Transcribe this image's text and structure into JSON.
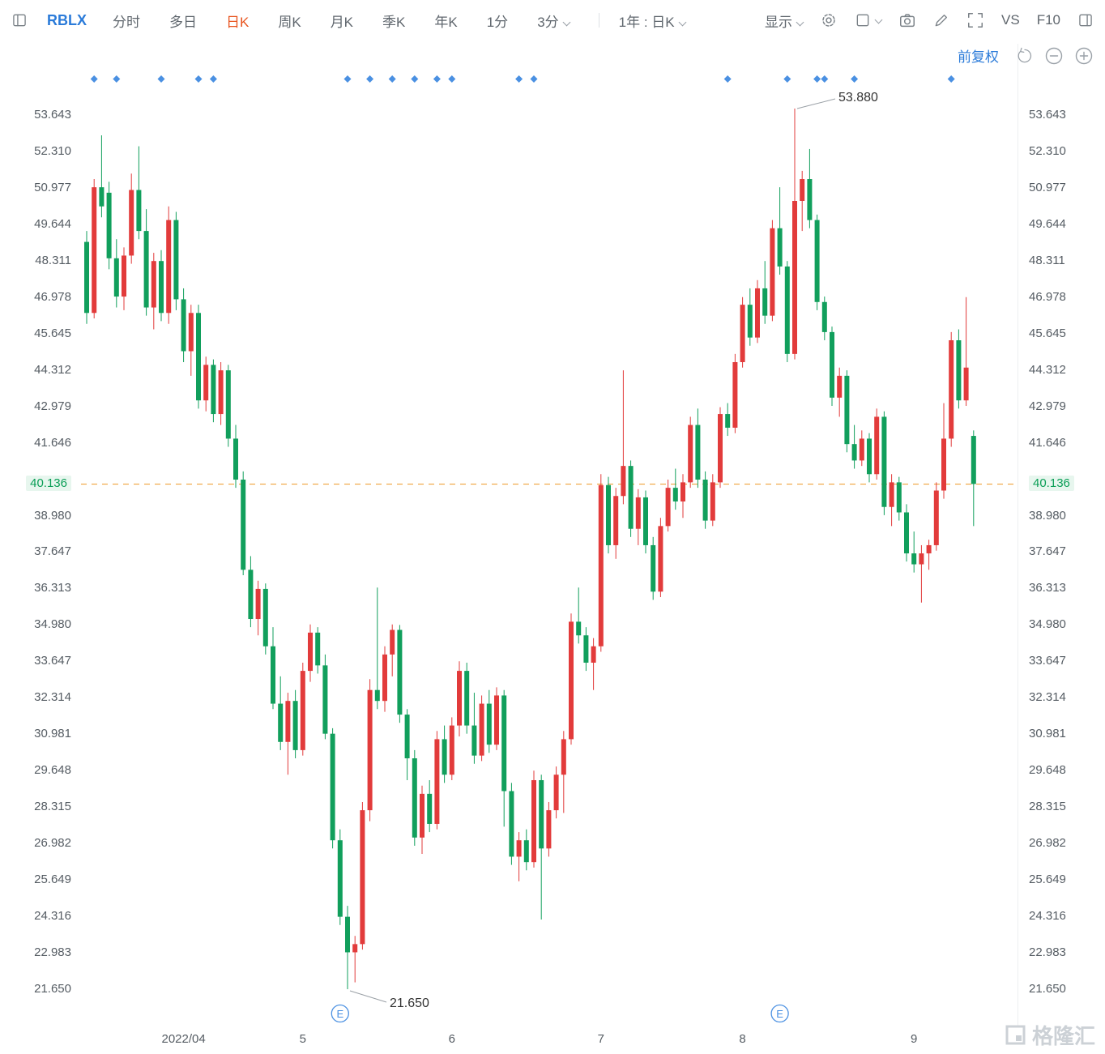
{
  "toolbar": {
    "symbol": "RBLX",
    "tabs": [
      "分时",
      "多日",
      "日K",
      "周K",
      "月K",
      "季K",
      "年K",
      "1分",
      "3分"
    ],
    "active_tab": "日K",
    "range_selector": "1年 : 日K",
    "display_label": "显示",
    "vs_label": "VS",
    "f10_label": "F10",
    "adjustment": "前复权"
  },
  "watermark_text": "格隆汇",
  "colors": {
    "up": "#e23b3b",
    "down": "#119f5c",
    "current_line": "#f0a23c",
    "marker_blue": "#4a90e2",
    "accent_orange": "#e8541e",
    "link_blue": "#2b7bd9",
    "current_price_green": "#0a9e56"
  },
  "chart_data": {
    "type": "candlestick",
    "symbol": "RBLX",
    "range": "1年",
    "timeframe": "日K",
    "adjustment": "前复权",
    "current_price": 40.136,
    "current_price_label": "40.136",
    "high_annotation": {
      "text": "53.880",
      "index": 95
    },
    "low_annotation": {
      "text": "21.650",
      "index": 35
    },
    "y_axis_labels": [
      "53.643",
      "52.310",
      "50.977",
      "49.644",
      "48.311",
      "46.978",
      "45.645",
      "44.312",
      "42.979",
      "41.646",
      "38.980",
      "37.647",
      "36.313",
      "34.980",
      "33.647",
      "32.314",
      "30.981",
      "29.648",
      "28.315",
      "26.982",
      "25.649",
      "24.316",
      "22.983",
      "21.650"
    ],
    "x_axis_labels": [
      {
        "label": "2022/04",
        "index": 13
      },
      {
        "label": "5",
        "index": 29
      },
      {
        "label": "6",
        "index": 49
      },
      {
        "label": "7",
        "index": 69
      },
      {
        "label": "8",
        "index": 88
      },
      {
        "label": "9",
        "index": 111
      }
    ],
    "event_marker_indices": [
      1,
      4,
      10,
      15,
      17,
      35,
      38,
      41,
      44,
      47,
      49,
      58,
      60,
      86,
      94,
      98,
      99,
      103,
      116
    ],
    "earnings_marker_indices": [
      34,
      93
    ],
    "candles": [
      [
        49.0,
        49.4,
        46.0,
        46.4
      ],
      [
        46.4,
        51.3,
        46.2,
        51.0
      ],
      [
        51.0,
        52.9,
        49.9,
        50.3
      ],
      [
        50.8,
        51.2,
        48.0,
        48.4
      ],
      [
        48.4,
        49.1,
        46.6,
        47.0
      ],
      [
        47.0,
        48.8,
        46.5,
        48.5
      ],
      [
        48.5,
        51.5,
        48.2,
        50.9
      ],
      [
        50.9,
        52.5,
        49.1,
        49.4
      ],
      [
        49.4,
        50.2,
        46.3,
        46.6
      ],
      [
        46.6,
        48.6,
        45.8,
        48.3
      ],
      [
        48.3,
        48.7,
        46.1,
        46.4
      ],
      [
        46.4,
        50.3,
        46.0,
        49.8
      ],
      [
        49.8,
        50.1,
        46.5,
        46.9
      ],
      [
        46.9,
        47.3,
        44.6,
        45.0
      ],
      [
        45.0,
        46.7,
        44.1,
        46.4
      ],
      [
        46.4,
        46.7,
        42.9,
        43.2
      ],
      [
        43.2,
        44.8,
        42.8,
        44.5
      ],
      [
        44.5,
        44.7,
        42.4,
        42.7
      ],
      [
        42.7,
        44.6,
        42.3,
        44.3
      ],
      [
        44.3,
        44.5,
        41.5,
        41.8
      ],
      [
        41.8,
        42.3,
        40.0,
        40.3
      ],
      [
        40.3,
        40.6,
        36.8,
        37.0
      ],
      [
        37.0,
        37.5,
        34.9,
        35.2
      ],
      [
        35.2,
        36.6,
        34.6,
        36.3
      ],
      [
        36.3,
        36.5,
        33.9,
        34.2
      ],
      [
        34.2,
        34.9,
        31.9,
        32.1
      ],
      [
        32.1,
        33.1,
        30.4,
        30.7
      ],
      [
        30.7,
        32.5,
        29.5,
        32.2
      ],
      [
        32.2,
        32.6,
        30.1,
        30.4
      ],
      [
        30.4,
        33.6,
        30.2,
        33.3
      ],
      [
        33.3,
        35.0,
        32.9,
        34.7
      ],
      [
        34.7,
        34.9,
        33.2,
        33.5
      ],
      [
        33.5,
        33.9,
        30.8,
        31.0
      ],
      [
        31.0,
        31.2,
        26.8,
        27.1
      ],
      [
        27.1,
        27.5,
        24.0,
        24.3
      ],
      [
        24.3,
        24.7,
        21.65,
        23.0
      ],
      [
        23.0,
        23.6,
        21.9,
        23.3
      ],
      [
        23.3,
        28.5,
        23.1,
        28.2
      ],
      [
        28.2,
        33.0,
        27.8,
        32.6
      ],
      [
        32.6,
        36.35,
        31.9,
        32.2
      ],
      [
        32.2,
        34.2,
        31.8,
        33.9
      ],
      [
        33.9,
        35.0,
        33.1,
        34.8
      ],
      [
        34.8,
        34.98,
        31.4,
        31.7
      ],
      [
        31.7,
        31.9,
        29.3,
        30.1
      ],
      [
        30.1,
        30.4,
        26.9,
        27.2
      ],
      [
        27.2,
        29.1,
        26.6,
        28.8
      ],
      [
        28.8,
        29.3,
        27.4,
        27.7
      ],
      [
        27.7,
        31.1,
        27.5,
        30.8
      ],
      [
        30.8,
        31.3,
        29.2,
        29.5
      ],
      [
        29.5,
        31.6,
        29.3,
        31.3
      ],
      [
        31.3,
        33.65,
        30.9,
        33.3
      ],
      [
        33.3,
        33.6,
        31.0,
        31.3
      ],
      [
        31.3,
        32.5,
        29.9,
        30.2
      ],
      [
        30.2,
        32.4,
        30.0,
        32.1
      ],
      [
        32.1,
        32.6,
        30.3,
        30.6
      ],
      [
        30.6,
        32.7,
        30.4,
        32.4
      ],
      [
        32.4,
        32.6,
        27.6,
        28.9
      ],
      [
        28.9,
        29.2,
        26.2,
        26.5
      ],
      [
        26.5,
        27.4,
        25.6,
        27.1
      ],
      [
        27.1,
        27.5,
        26.0,
        26.3
      ],
      [
        26.3,
        29.65,
        26.1,
        29.3
      ],
      [
        29.3,
        29.5,
        24.2,
        26.8
      ],
      [
        26.8,
        28.5,
        26.5,
        28.2
      ],
      [
        28.2,
        29.8,
        27.9,
        29.5
      ],
      [
        29.5,
        31.1,
        28.1,
        30.8
      ],
      [
        30.8,
        35.4,
        30.6,
        35.1
      ],
      [
        35.1,
        36.35,
        34.3,
        34.6
      ],
      [
        34.6,
        34.9,
        33.3,
        33.6
      ],
      [
        33.6,
        34.5,
        32.6,
        34.2
      ],
      [
        34.2,
        40.5,
        34.0,
        40.1
      ],
      [
        40.1,
        40.4,
        37.6,
        37.9
      ],
      [
        37.9,
        40.0,
        37.4,
        39.7
      ],
      [
        39.7,
        44.3,
        39.4,
        40.8
      ],
      [
        40.8,
        41.0,
        38.2,
        38.5
      ],
      [
        38.5,
        39.95,
        37.9,
        39.65
      ],
      [
        39.65,
        39.9,
        37.6,
        37.9
      ],
      [
        37.9,
        38.2,
        35.9,
        36.2
      ],
      [
        36.2,
        38.9,
        36.0,
        38.6
      ],
      [
        38.6,
        40.3,
        38.4,
        40.0
      ],
      [
        40.0,
        40.7,
        39.2,
        39.5
      ],
      [
        39.5,
        40.5,
        38.9,
        40.2
      ],
      [
        40.2,
        42.6,
        40.0,
        42.3
      ],
      [
        42.3,
        42.9,
        40.0,
        40.3
      ],
      [
        40.3,
        40.6,
        38.5,
        38.8
      ],
      [
        38.8,
        40.5,
        38.6,
        40.2
      ],
      [
        40.2,
        42.95,
        40.0,
        42.7
      ],
      [
        42.7,
        43.1,
        41.9,
        42.2
      ],
      [
        42.2,
        44.9,
        42.0,
        44.6
      ],
      [
        44.6,
        46.98,
        44.4,
        46.7
      ],
      [
        46.7,
        47.3,
        45.2,
        45.5
      ],
      [
        45.5,
        47.6,
        45.3,
        47.3
      ],
      [
        47.3,
        48.3,
        46.0,
        46.3
      ],
      [
        46.3,
        49.8,
        46.1,
        49.5
      ],
      [
        49.5,
        51.0,
        47.8,
        48.1
      ],
      [
        48.1,
        48.3,
        44.6,
        44.9
      ],
      [
        44.9,
        53.88,
        44.7,
        50.5
      ],
      [
        50.5,
        51.6,
        49.4,
        51.3
      ],
      [
        51.3,
        52.4,
        49.5,
        49.8
      ],
      [
        49.8,
        50.0,
        46.5,
        46.8
      ],
      [
        46.8,
        47.0,
        45.4,
        45.7
      ],
      [
        45.7,
        45.9,
        43.0,
        43.3
      ],
      [
        43.3,
        44.4,
        42.6,
        44.1
      ],
      [
        44.1,
        44.3,
        41.3,
        41.6
      ],
      [
        41.6,
        42.3,
        40.7,
        41.0
      ],
      [
        41.0,
        42.1,
        40.8,
        41.8
      ],
      [
        41.8,
        42.0,
        40.2,
        40.5
      ],
      [
        40.5,
        42.9,
        40.3,
        42.6
      ],
      [
        42.6,
        42.8,
        39.0,
        39.3
      ],
      [
        39.3,
        40.5,
        38.6,
        40.2
      ],
      [
        40.2,
        40.4,
        38.8,
        39.1
      ],
      [
        39.1,
        39.4,
        37.3,
        37.6
      ],
      [
        37.6,
        38.4,
        36.9,
        37.2
      ],
      [
        37.2,
        37.9,
        35.8,
        37.6
      ],
      [
        37.6,
        38.1,
        37.0,
        37.9
      ],
      [
        37.9,
        40.2,
        37.7,
        39.9
      ],
      [
        39.9,
        43.1,
        39.6,
        41.8
      ],
      [
        41.8,
        45.7,
        41.5,
        45.4
      ],
      [
        45.4,
        45.8,
        42.9,
        43.2
      ],
      [
        43.2,
        46.98,
        43.0,
        44.4
      ],
      [
        41.9,
        42.1,
        38.6,
        40.14
      ]
    ]
  }
}
